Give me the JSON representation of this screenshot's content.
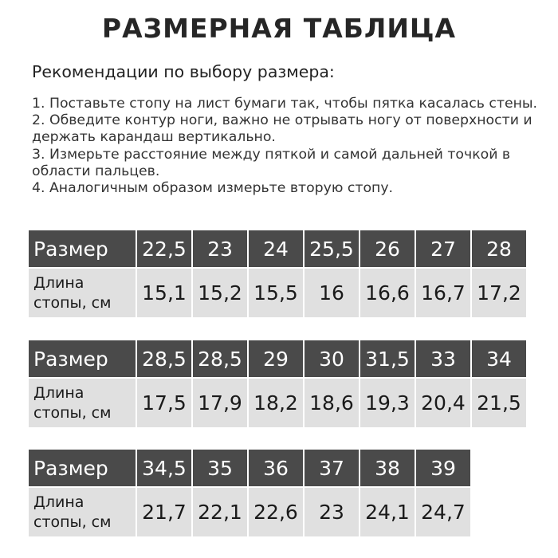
{
  "title": "РАЗМЕРНАЯ ТАБЛИЦА",
  "subtitle": "Рекомендации по выбору размера:",
  "steps": [
    "1. Поставьте стопу на лист бумаги так, чтобы пятка касалась стены.",
    "2. Обведите контур ноги, важно не отрывать ногу от поверхности и держать карандаш вертикально.",
    "3. Измерьте расстояние между пяткой и самой дальней точкой в области пальцев.",
    "4. Аналогичным образом измерьте вторую стопу."
  ],
  "row_labels": {
    "size": "Размер",
    "length_line1": "Длина",
    "length_line2": "стопы, см"
  },
  "tables": [
    {
      "sizes": [
        "22,5",
        "23",
        "24",
        "25,5",
        "26",
        "27",
        "28"
      ],
      "lengths": [
        "15,1",
        "15,2",
        "15,5",
        "16",
        "16,6",
        "16,7",
        "17,2"
      ]
    },
    {
      "sizes": [
        "28,5",
        "28,5",
        "29",
        "30",
        "31,5",
        "33",
        "34"
      ],
      "lengths": [
        "17,5",
        "17,9",
        "18,2",
        "18,6",
        "19,3",
        "20,4",
        "21,5"
      ]
    },
    {
      "sizes": [
        "34,5",
        "35",
        "36",
        "37",
        "38",
        "39"
      ],
      "lengths": [
        "21,7",
        "22,1",
        "22,6",
        "23",
        "24,1",
        "24,7"
      ]
    }
  ],
  "colors": {
    "header_bg": "#4a4a4a",
    "row_bg": "#e0e0e0"
  }
}
